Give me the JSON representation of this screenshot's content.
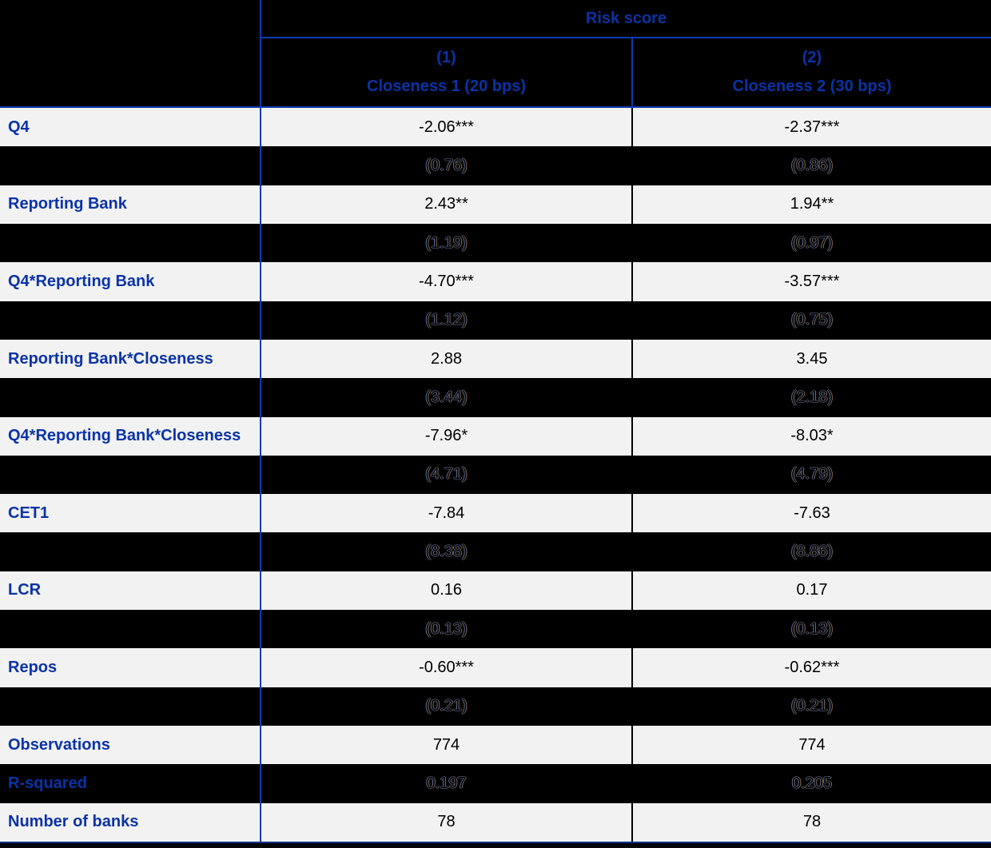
{
  "table": {
    "span_header": "Risk score",
    "columns": [
      {
        "number": "(1)",
        "label": "Closeness 1 (20 bps)"
      },
      {
        "number": "(2)",
        "label": "Closeness 2 (30 bps)"
      }
    ],
    "rows": [
      {
        "label": "Q4",
        "kind": "coef",
        "values": [
          "-2.06***",
          "-2.37***"
        ]
      },
      {
        "label": "",
        "kind": "se",
        "values": [
          "(0.76)",
          "(0.86)"
        ]
      },
      {
        "label": "Reporting Bank",
        "kind": "coef",
        "values": [
          "2.43**",
          "1.94**"
        ]
      },
      {
        "label": "",
        "kind": "se",
        "values": [
          "(1.19)",
          "(0.97)"
        ]
      },
      {
        "label": "Q4*Reporting Bank",
        "kind": "coef",
        "values": [
          "-4.70***",
          "-3.57***"
        ]
      },
      {
        "label": "",
        "kind": "se",
        "values": [
          "(1.12)",
          "(0.75)"
        ]
      },
      {
        "label": "Reporting Bank*Closeness",
        "kind": "coef",
        "values": [
          "2.88",
          "3.45"
        ]
      },
      {
        "label": "",
        "kind": "se",
        "values": [
          "(3.44)",
          "(2.18)"
        ]
      },
      {
        "label": "Q4*Reporting Bank*Closeness",
        "kind": "coef",
        "values": [
          "-7.96*",
          "-8.03*"
        ]
      },
      {
        "label": "",
        "kind": "se",
        "values": [
          "(4.71)",
          "(4.79)"
        ]
      },
      {
        "label": "CET1",
        "kind": "coef",
        "values": [
          "-7.84",
          "-7.63"
        ]
      },
      {
        "label": "",
        "kind": "se",
        "values": [
          "(8.38)",
          "(8.86)"
        ]
      },
      {
        "label": "LCR",
        "kind": "coef",
        "values": [
          "0.16",
          "0.17"
        ]
      },
      {
        "label": "",
        "kind": "se",
        "values": [
          "(0.13)",
          "(0.13)"
        ]
      },
      {
        "label": "Repos",
        "kind": "coef",
        "values": [
          "-0.60***",
          "-0.62***"
        ]
      },
      {
        "label": "",
        "kind": "se",
        "values": [
          "(0.21)",
          "(0.21)"
        ]
      },
      {
        "label": "Observations",
        "kind": "coef",
        "values": [
          "774",
          "774"
        ]
      },
      {
        "label": "R-squared",
        "kind": "stat-dark",
        "values": [
          "0.197",
          "0.205"
        ]
      },
      {
        "label": "Number of banks",
        "kind": "coef",
        "values": [
          "78",
          "78"
        ]
      }
    ],
    "colors": {
      "accent_blue": "#0a33a6",
      "line_blue": "#0d3cb2",
      "row_light": "#f2f2f2",
      "row_dark": "#000000",
      "coefficient_text": "#000000"
    }
  }
}
